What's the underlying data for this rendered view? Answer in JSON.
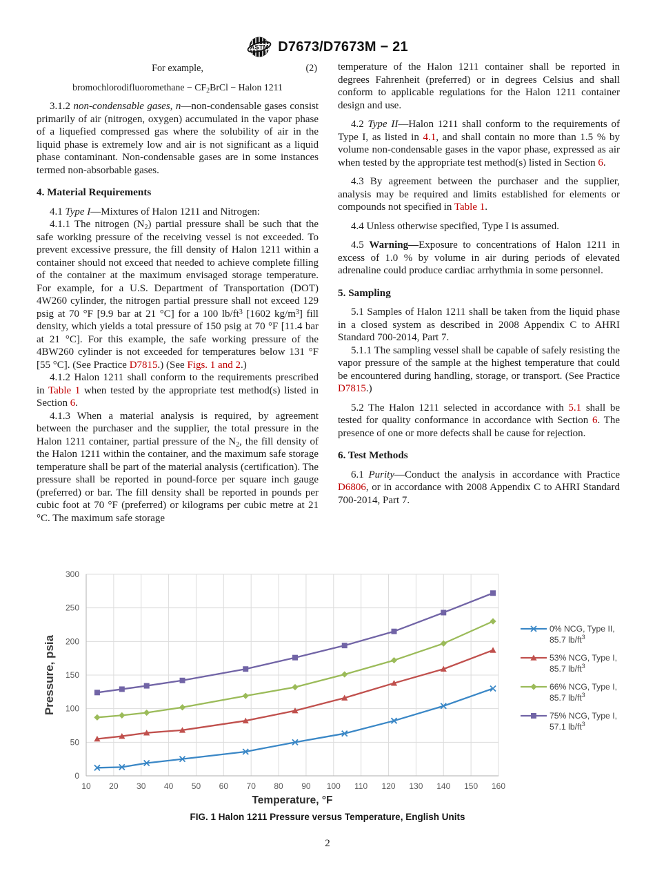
{
  "header": {
    "title": "D7673/D7673M − 21",
    "logo": "astm-international-logo"
  },
  "page_number": "2",
  "columns": {
    "left": [
      {
        "type": "example",
        "text": "For example,",
        "eq_num": "(2)"
      },
      {
        "type": "equation",
        "segments": [
          {
            "t": "bromochlorodifluoromethane − CF"
          },
          {
            "t": "2",
            "s": "sub"
          },
          {
            "t": "BrCl − Halon 1211"
          }
        ]
      },
      {
        "type": "para",
        "gap": true,
        "segments": [
          {
            "t": "3.1.2 "
          },
          {
            "t": "non-condensable gases, n",
            "s": "i"
          },
          {
            "t": "—non-condensable gases consist primarily of air (nitrogen, oxygen) accumulated in the vapor phase of a liquefied compressed gas where the solubility of air in the liquid phase is extremely low and air is not significant as a liquid phase contaminant. Non-condensable gases are in some instances termed non-absorbable gases."
          }
        ]
      },
      {
        "type": "heading",
        "text": "4. Material Requirements"
      },
      {
        "type": "para",
        "segments": [
          {
            "t": "4.1 "
          },
          {
            "t": "Type I",
            "s": "i"
          },
          {
            "t": "—Mixtures of Halon 1211 and Nitrogen:"
          }
        ]
      },
      {
        "type": "para",
        "segments": [
          {
            "t": "4.1.1 The nitrogen (N"
          },
          {
            "t": "2",
            "s": "sub"
          },
          {
            "t": ") partial pressure shall be such that the safe working pressure of the receiving vessel is not exceeded. To prevent excessive pressure, the fill density of Halon 1211 within a container should not exceed that needed to achieve complete filling of the container at the maximum envisaged storage temperature. For example, for a U.S. Department of Transportation (DOT) 4W260 cylinder, the nitrogen partial pressure shall not exceed 129 psig at 70 °F [9.9 bar at 21 °C] for a 100 lb/ft"
          },
          {
            "t": "3",
            "s": "sup"
          },
          {
            "t": " [1602 kg/m"
          },
          {
            "t": "3",
            "s": "sup"
          },
          {
            "t": "] fill density, which yields a total pressure of 150 psig at 70 °F [11.4 bar at 21 °C]. For this example, the safe working pressure of the 4BW260 cylinder is not exceeded for temperatures below 131 °F [55 °C]. (See Practice "
          },
          {
            "t": "D7815",
            "s": "r"
          },
          {
            "t": ".) (See "
          },
          {
            "t": "Figs. 1 and 2",
            "s": "r"
          },
          {
            "t": ".)"
          }
        ]
      },
      {
        "type": "para",
        "segments": [
          {
            "t": "4.1.2 Halon 1211 shall conform to the requirements prescribed in "
          },
          {
            "t": "Table 1",
            "s": "r"
          },
          {
            "t": " when tested by the appropriate test method(s) listed in Section "
          },
          {
            "t": "6",
            "s": "r"
          },
          {
            "t": "."
          }
        ]
      },
      {
        "type": "para",
        "segments": [
          {
            "t": "4.1.3 When a material analysis is required, by agreement between the purchaser and the supplier, the total pressure in the Halon 1211 container, partial pressure of the N"
          },
          {
            "t": "2",
            "s": "sub"
          },
          {
            "t": ", the fill density of the Halon 1211 within the container, and the maximum safe storage temperature shall be part of the material analysis (certification). The pressure shall be reported in pound-force per square inch gauge (preferred) or bar. The fill density shall be reported in pounds per cubic foot at 70 °F (preferred) or kilograms per cubic metre at 21 °C. The maximum safe storage"
          }
        ]
      }
    ],
    "right": [
      {
        "type": "para",
        "noindent": true,
        "segments": [
          {
            "t": "temperature of the Halon 1211 container shall be reported in degrees Fahrenheit (preferred) or in degrees Celsius and shall conform to applicable regulations for the Halon 1211 container design and use."
          }
        ]
      },
      {
        "type": "para",
        "gap": true,
        "segments": [
          {
            "t": "4.2 "
          },
          {
            "t": "Type II",
            "s": "i"
          },
          {
            "t": "—Halon 1211 shall conform to the requirements of Type I, as listed in "
          },
          {
            "t": "4.1",
            "s": "r"
          },
          {
            "t": ", and shall contain no more than 1.5 % by volume non-condensable gases in the vapor phase, expressed as air when tested by the appropriate test method(s) listed in Section "
          },
          {
            "t": "6",
            "s": "r"
          },
          {
            "t": "."
          }
        ]
      },
      {
        "type": "para",
        "gap": true,
        "segments": [
          {
            "t": "4.3 By agreement between the purchaser and the supplier, analysis may be required and limits established for elements or compounds not specified in "
          },
          {
            "t": "Table 1",
            "s": "r"
          },
          {
            "t": "."
          }
        ]
      },
      {
        "type": "para",
        "gap": true,
        "segments": [
          {
            "t": "4.4 Unless otherwise specified, Type I is assumed."
          }
        ]
      },
      {
        "type": "para",
        "gap": true,
        "segments": [
          {
            "t": "4.5 "
          },
          {
            "t": "Warning—",
            "s": "b"
          },
          {
            "t": "Exposure to concentrations of Halon 1211 in excess of 1.0 % by volume in air during periods of elevated adrenaline could produce cardiac arrhythmia in some personnel."
          }
        ]
      },
      {
        "type": "heading",
        "text": "5. Sampling"
      },
      {
        "type": "para",
        "segments": [
          {
            "t": "5.1 Samples of Halon 1211 shall be taken from the liquid phase in a closed system as described in 2008 Appendix C to AHRI Standard 700-2014, Part 7."
          }
        ]
      },
      {
        "type": "para",
        "segments": [
          {
            "t": "5.1.1 The sampling vessel shall be capable of safely resisting the vapor pressure of the sample at the highest temperature that could be encountered during handling, storage, or transport. (See Practice "
          },
          {
            "t": "D7815",
            "s": "r"
          },
          {
            "t": ".)"
          }
        ]
      },
      {
        "type": "para",
        "gap": true,
        "segments": [
          {
            "t": "5.2 The Halon 1211 selected in accordance with "
          },
          {
            "t": "5.1",
            "s": "r"
          },
          {
            "t": " shall be tested for quality conformance in accordance with Section "
          },
          {
            "t": "6",
            "s": "r"
          },
          {
            "t": ". The presence of one or more defects shall be cause for rejection."
          }
        ]
      },
      {
        "type": "heading",
        "text": "6. Test Methods"
      },
      {
        "type": "para",
        "segments": [
          {
            "t": "6.1 "
          },
          {
            "t": "Purity",
            "s": "i"
          },
          {
            "t": "—Conduct the analysis in accordance with Practice "
          },
          {
            "t": "D6806",
            "s": "r"
          },
          {
            "t": ", or in accordance with 2008 Appendix C to AHRI Standard 700-2014, Part 7."
          }
        ]
      }
    ]
  },
  "figure": {
    "caption": "FIG. 1 Halon 1211 Pressure versus Temperature, English Units"
  },
  "chart_data": {
    "type": "line",
    "title": "",
    "xlabel": "Temperature, °F",
    "ylabel": "Pressure, psia",
    "xlim": [
      10,
      160
    ],
    "ylim": [
      0,
      300
    ],
    "x_ticks": [
      10,
      20,
      30,
      40,
      50,
      60,
      70,
      80,
      90,
      100,
      110,
      120,
      130,
      140,
      150,
      160
    ],
    "y_ticks": [
      0,
      50,
      100,
      150,
      200,
      250,
      300
    ],
    "grid": true,
    "legend_position": "right",
    "x": [
      14,
      23,
      32,
      45,
      68,
      86,
      104,
      122,
      140,
      158
    ],
    "series": [
      {
        "name": "0% NCG, Type II, 85.7 lb/ft³",
        "legend_lines": [
          "0% NCG, Type II,",
          "85.7 lb/ft"
        ],
        "legend_sup": "3",
        "marker": "x",
        "color": "#3a87c6",
        "values": [
          12,
          13,
          19,
          25,
          36,
          50,
          63,
          82,
          104,
          130
        ]
      },
      {
        "name": "53% NCG, Type I, 85.7 lb/ft³",
        "legend_lines": [
          "53% NCG, Type I,",
          "85.7 lb/ft"
        ],
        "legend_sup": "3",
        "marker": "triangle",
        "color": "#c0504d",
        "values": [
          55,
          59,
          64,
          68,
          82,
          97,
          116,
          138,
          159,
          187
        ]
      },
      {
        "name": "66% NCG, Type I, 85.7 lb/ft³",
        "legend_lines": [
          "66% NCG, Type I,",
          "85.7 lb/ft"
        ],
        "legend_sup": "3",
        "marker": "diamond",
        "color": "#9bbb59",
        "values": [
          87,
          90,
          94,
          102,
          119,
          132,
          151,
          172,
          197,
          230
        ]
      },
      {
        "name": "75% NCG, Type I, 57.1 lb/ft³",
        "legend_lines": [
          "75% NCG, Type I,",
          "57.1 lb/ft"
        ],
        "legend_sup": "3",
        "marker": "square",
        "color": "#7164a6",
        "values": [
          124,
          129,
          134,
          142,
          159,
          176,
          194,
          215,
          243,
          272
        ]
      }
    ],
    "colors": {
      "grid": "#dcdcdc",
      "axis": "#bdbdbd",
      "tick_label": "#595959",
      "legend_text": "#404040",
      "link_red": "#c00000"
    }
  }
}
